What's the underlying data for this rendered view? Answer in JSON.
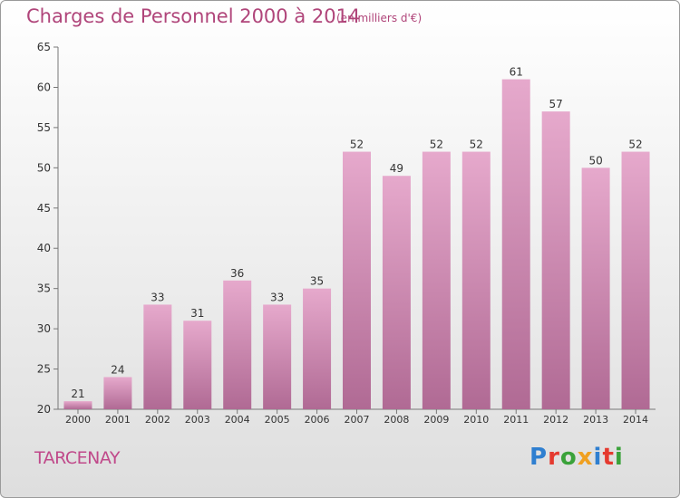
{
  "header": {
    "title": "Charges de Personnel 2000 à 2014",
    "subtitle": "(en milliers d'€)"
  },
  "footer": {
    "place": "TARCENAY",
    "logo": "Proxiti"
  },
  "colors": {
    "accent": "#b0457a",
    "bar_light": "#e6a9cc",
    "bar_dark": "#b06a94"
  },
  "chart_data": {
    "type": "bar",
    "title": "Charges de Personnel 2000 à 2014",
    "subtitle": "(en milliers d'€)",
    "xlabel": "",
    "ylabel": "",
    "ylim": [
      20,
      65
    ],
    "yticks": [
      20,
      25,
      30,
      35,
      40,
      45,
      50,
      55,
      60,
      65
    ],
    "categories": [
      "2000",
      "2001",
      "2002",
      "2003",
      "2004",
      "2005",
      "2006",
      "2007",
      "2008",
      "2009",
      "2010",
      "2011",
      "2012",
      "2013",
      "2014"
    ],
    "values": [
      21,
      24,
      33,
      31,
      36,
      33,
      35,
      52,
      49,
      52,
      52,
      61,
      57,
      50,
      52
    ],
    "grid": false,
    "legend": "none"
  }
}
